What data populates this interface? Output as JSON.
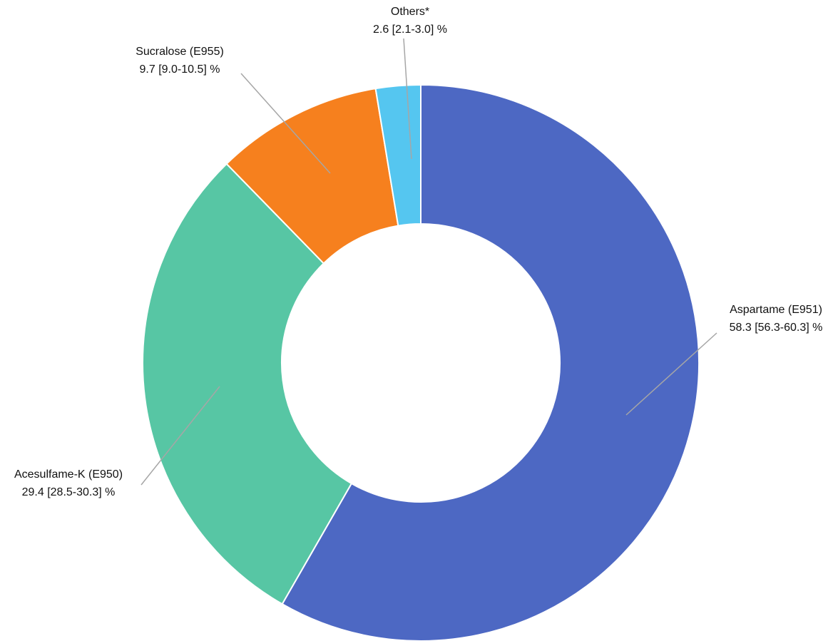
{
  "chart_data": {
    "type": "pie",
    "subtype": "donut",
    "title": "",
    "unit": "%",
    "start_angle_deg": 0,
    "direction": "clockwise",
    "inner_radius_ratio": 0.5,
    "background_color": "#ffffff",
    "leader_line_color": "#a6a6a6",
    "slice_border_color": "#ffffff",
    "slices": [
      {
        "label": "Aspartame (E951)",
        "value": 58.3,
        "ci_low": 56.3,
        "ci_high": 60.3,
        "value_text": "58.3 [56.3-60.3] %",
        "color": "#4d68c3"
      },
      {
        "label": "Acesulfame-K (E950)",
        "value": 29.4,
        "ci_low": 28.5,
        "ci_high": 30.3,
        "value_text": "29.4 [28.5-30.3] %",
        "color": "#57c6a4"
      },
      {
        "label": "Sucralose (E955)",
        "value": 9.7,
        "ci_low": 9.0,
        "ci_high": 10.5,
        "value_text": "9.7 [9.0-10.5] %",
        "color": "#f6801e"
      },
      {
        "label": "Others*",
        "value": 2.6,
        "ci_low": 2.1,
        "ci_high": 3.0,
        "value_text": "2.6 [2.1-3.0] %",
        "color": "#55c6f0"
      }
    ]
  }
}
